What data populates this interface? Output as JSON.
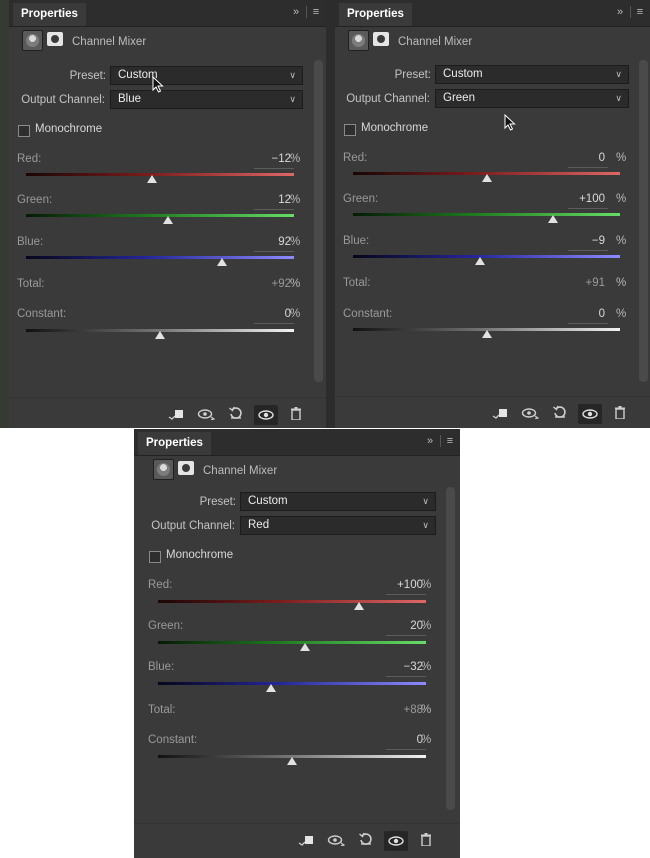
{
  "panels": [
    {
      "tab": "Properties",
      "title": "Channel Mixer",
      "preset_label": "Preset:",
      "preset_value": "Custom",
      "output_label": "Output Channel:",
      "output_value": "Blue",
      "mono_label": "Monochrome",
      "red_label": "Red:",
      "red_value": "−12",
      "green_label": "Green:",
      "green_value": "12",
      "blue_label": "Blue:",
      "blue_value": "92",
      "total_label": "Total:",
      "total_value": "+92",
      "constant_label": "Constant:",
      "constant_value": "0",
      "pct": "%",
      "sliders": {
        "red": -12,
        "green": 12,
        "blue": 92,
        "constant": 0
      }
    },
    {
      "tab": "Properties",
      "title": "Channel Mixer",
      "preset_label": "Preset:",
      "preset_value": "Custom",
      "output_label": "Output Channel:",
      "output_value": "Green",
      "mono_label": "Monochrome",
      "red_label": "Red:",
      "red_value": "0",
      "green_label": "Green:",
      "green_value": "+100",
      "blue_label": "Blue:",
      "blue_value": "−9",
      "total_label": "Total:",
      "total_value": "+91",
      "constant_label": "Constant:",
      "constant_value": "0",
      "pct": "%",
      "sliders": {
        "red": 0,
        "green": 100,
        "blue": -9,
        "constant": 0
      }
    },
    {
      "tab": "Properties",
      "title": "Channel Mixer",
      "preset_label": "Preset:",
      "preset_value": "Custom",
      "output_label": "Output Channel:",
      "output_value": "Red",
      "mono_label": "Monochrome",
      "red_label": "Red:",
      "red_value": "+100",
      "green_label": "Green:",
      "green_value": "20",
      "blue_label": "Blue:",
      "blue_value": "−32",
      "total_label": "Total:",
      "total_value": "+88",
      "constant_label": "Constant:",
      "constant_value": "0",
      "pct": "%",
      "sliders": {
        "red": 100,
        "green": 20,
        "blue": -32,
        "constant": 0
      }
    }
  ],
  "icons": {
    "expand": "double-chevron-right-icon",
    "menu": "hamburger-menu-icon",
    "adjustment": "channel-mixer-icon",
    "mask": "layer-mask-icon",
    "clip": "clip-to-layer-icon",
    "view_previous": "view-previous-state-icon",
    "reset": "reset-icon",
    "visibility": "eye-icon",
    "delete": "trash-icon"
  },
  "colors": {
    "panel_bg": "#3a3a3a",
    "red_track_end": "#e06666",
    "green_track_end": "#66dd66",
    "blue_track_end": "#8b8bff"
  }
}
